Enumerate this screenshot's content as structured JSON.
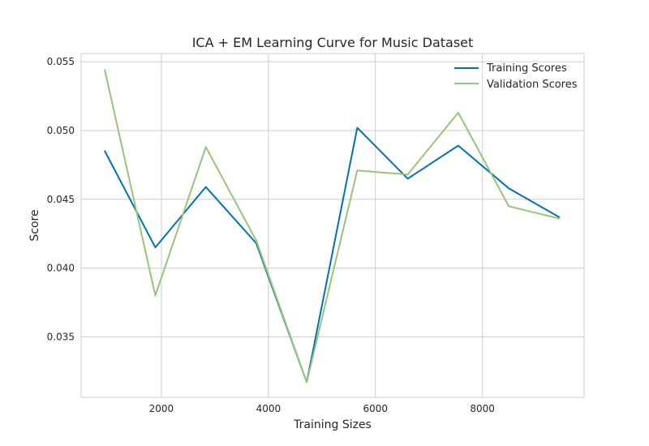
{
  "chart_data": {
    "type": "line",
    "title": "ICA + EM Learning Curve for Music Dataset",
    "xlabel": "Training Sizes",
    "ylabel": "Score",
    "xlim": [
      500,
      9900
    ],
    "ylim": [
      0.0306,
      0.0556
    ],
    "xticks": [
      2000,
      4000,
      6000,
      8000
    ],
    "yticks": [
      0.035,
      0.04,
      0.045,
      0.05,
      0.055
    ],
    "grid": true,
    "legend_position": "top-right",
    "x": [
      943,
      1887,
      2830,
      3774,
      4717,
      5661,
      6604,
      7548,
      8491,
      9435
    ],
    "series": [
      {
        "name": "Training Scores",
        "color": "#0072b2",
        "values": [
          0.0485,
          0.0415,
          0.0459,
          0.0418,
          0.0317,
          0.0502,
          0.0465,
          0.0489,
          0.0458,
          0.0437
        ]
      },
      {
        "name": "Validation Scores",
        "color": "#98c47a",
        "values": [
          0.0544,
          0.038,
          0.0488,
          0.042,
          0.0317,
          0.0471,
          0.0468,
          0.0513,
          0.0445,
          0.0436
        ]
      }
    ]
  }
}
